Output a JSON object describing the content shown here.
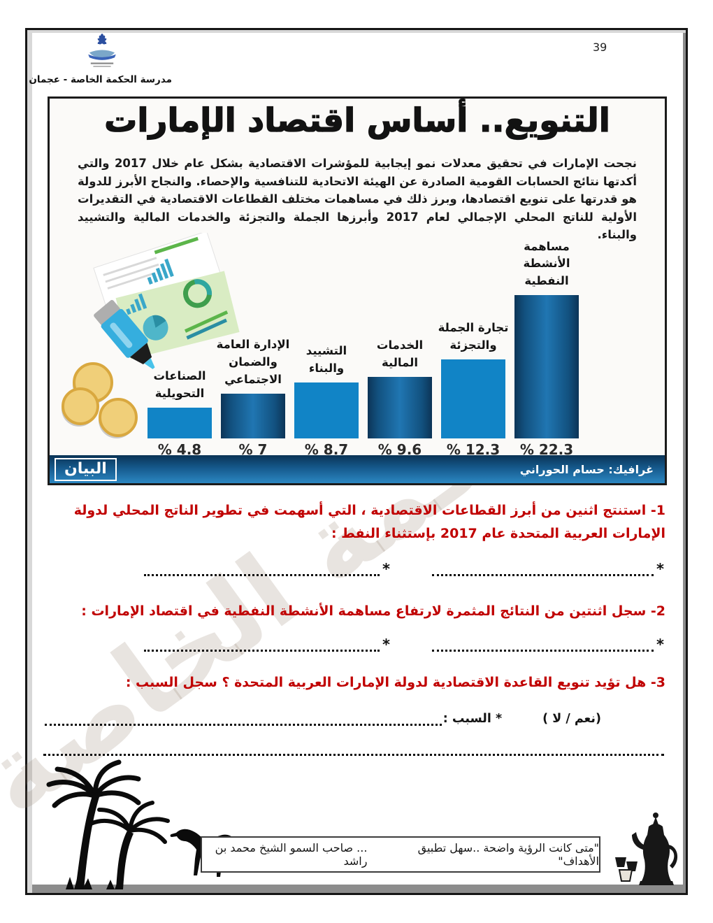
{
  "page": {
    "number": "39"
  },
  "header": {
    "school_name": "مدرسة الحكمة الخاصة - عجمان",
    "logo": "al-hekma-school-logo"
  },
  "infographic": {
    "title": "التنويع.. أساس اقتصاد الإمارات",
    "paragraph": "نجحت الإمارات في تحقيق معدلات نمو إيجابية للمؤشرات الاقتصادية بشكل عام خلال 2017 والتي أكدتها نتائج الحسابات القومية الصادرة عن الهيئة الاتحادية للتنافسية والإحصاء. والنجاح الأبرز للدولة هو قدرتها على تنويع اقتصادها، وبرز ذلك في مساهمات مختلف القطاعات الاقتصادية في التقديرات الأولية للناتج المحلي الإجمالي لعام 2017 وأبرزها الجملة والتجزئة والخدمات المالية والتشييد والبناء.",
    "brand": "البيان",
    "credit": "غرافيك: حسام الحوراني"
  },
  "chart_data": {
    "type": "bar",
    "title": "التنويع.. أساس اقتصاد الإمارات",
    "categories": [
      "الصناعات التحويلية",
      "الإدارة العامة والضمان الاجتماعي",
      "التشييد والبناء",
      "الخدمات المالية",
      "تجارة الجملة والتجزئة",
      "مساهمة الأنشطة النفطية"
    ],
    "values": [
      4.8,
      7,
      8.7,
      9.6,
      12.3,
      22.3
    ],
    "value_labels": [
      "% 4.8",
      "% 7",
      "% 8.7",
      "% 9.6",
      "% 12.3",
      "% 22.3"
    ],
    "unit": "%",
    "ylim": [
      0,
      24
    ],
    "grid": false,
    "legend": false,
    "bar_color_flat": "#1184c6",
    "bar_color_gradient_dark": "#0c3457",
    "bar_color_gradient_light": "#2076b2"
  },
  "questions": [
    {
      "text": "1- استنتج اثنين من أبرز القطاعات الاقتصادية ، التي أسهمت في تطوير الناتج المحلي لدولة الإمارات العربية المتحدة عام 2017  بإستثناء النفط :"
    },
    {
      "text": "2- سجل اثنتين من النتائج المثمرة لارتفاع مساهمة الأنشطة النفطية في اقتصاد الإمارات :"
    },
    {
      "text": "3- هل تؤيد تنويع القاعدة الاقتصادية لدولة الإمارات العربية المتحدة ؟ سجل السبب :"
    }
  ],
  "answers": {
    "star": "*",
    "q3_yes_no": "(نعم / لا )",
    "q3_reason_label": "* السبب :"
  },
  "quote": {
    "text": "\"متى كانت الرؤية واضحة ..سهل تطبيق الأهداف\"",
    "attribution": "... صاحب السمو الشيخ محمد بن راشد"
  },
  "watermark": {
    "text": "الحكمة الخاصة"
  }
}
